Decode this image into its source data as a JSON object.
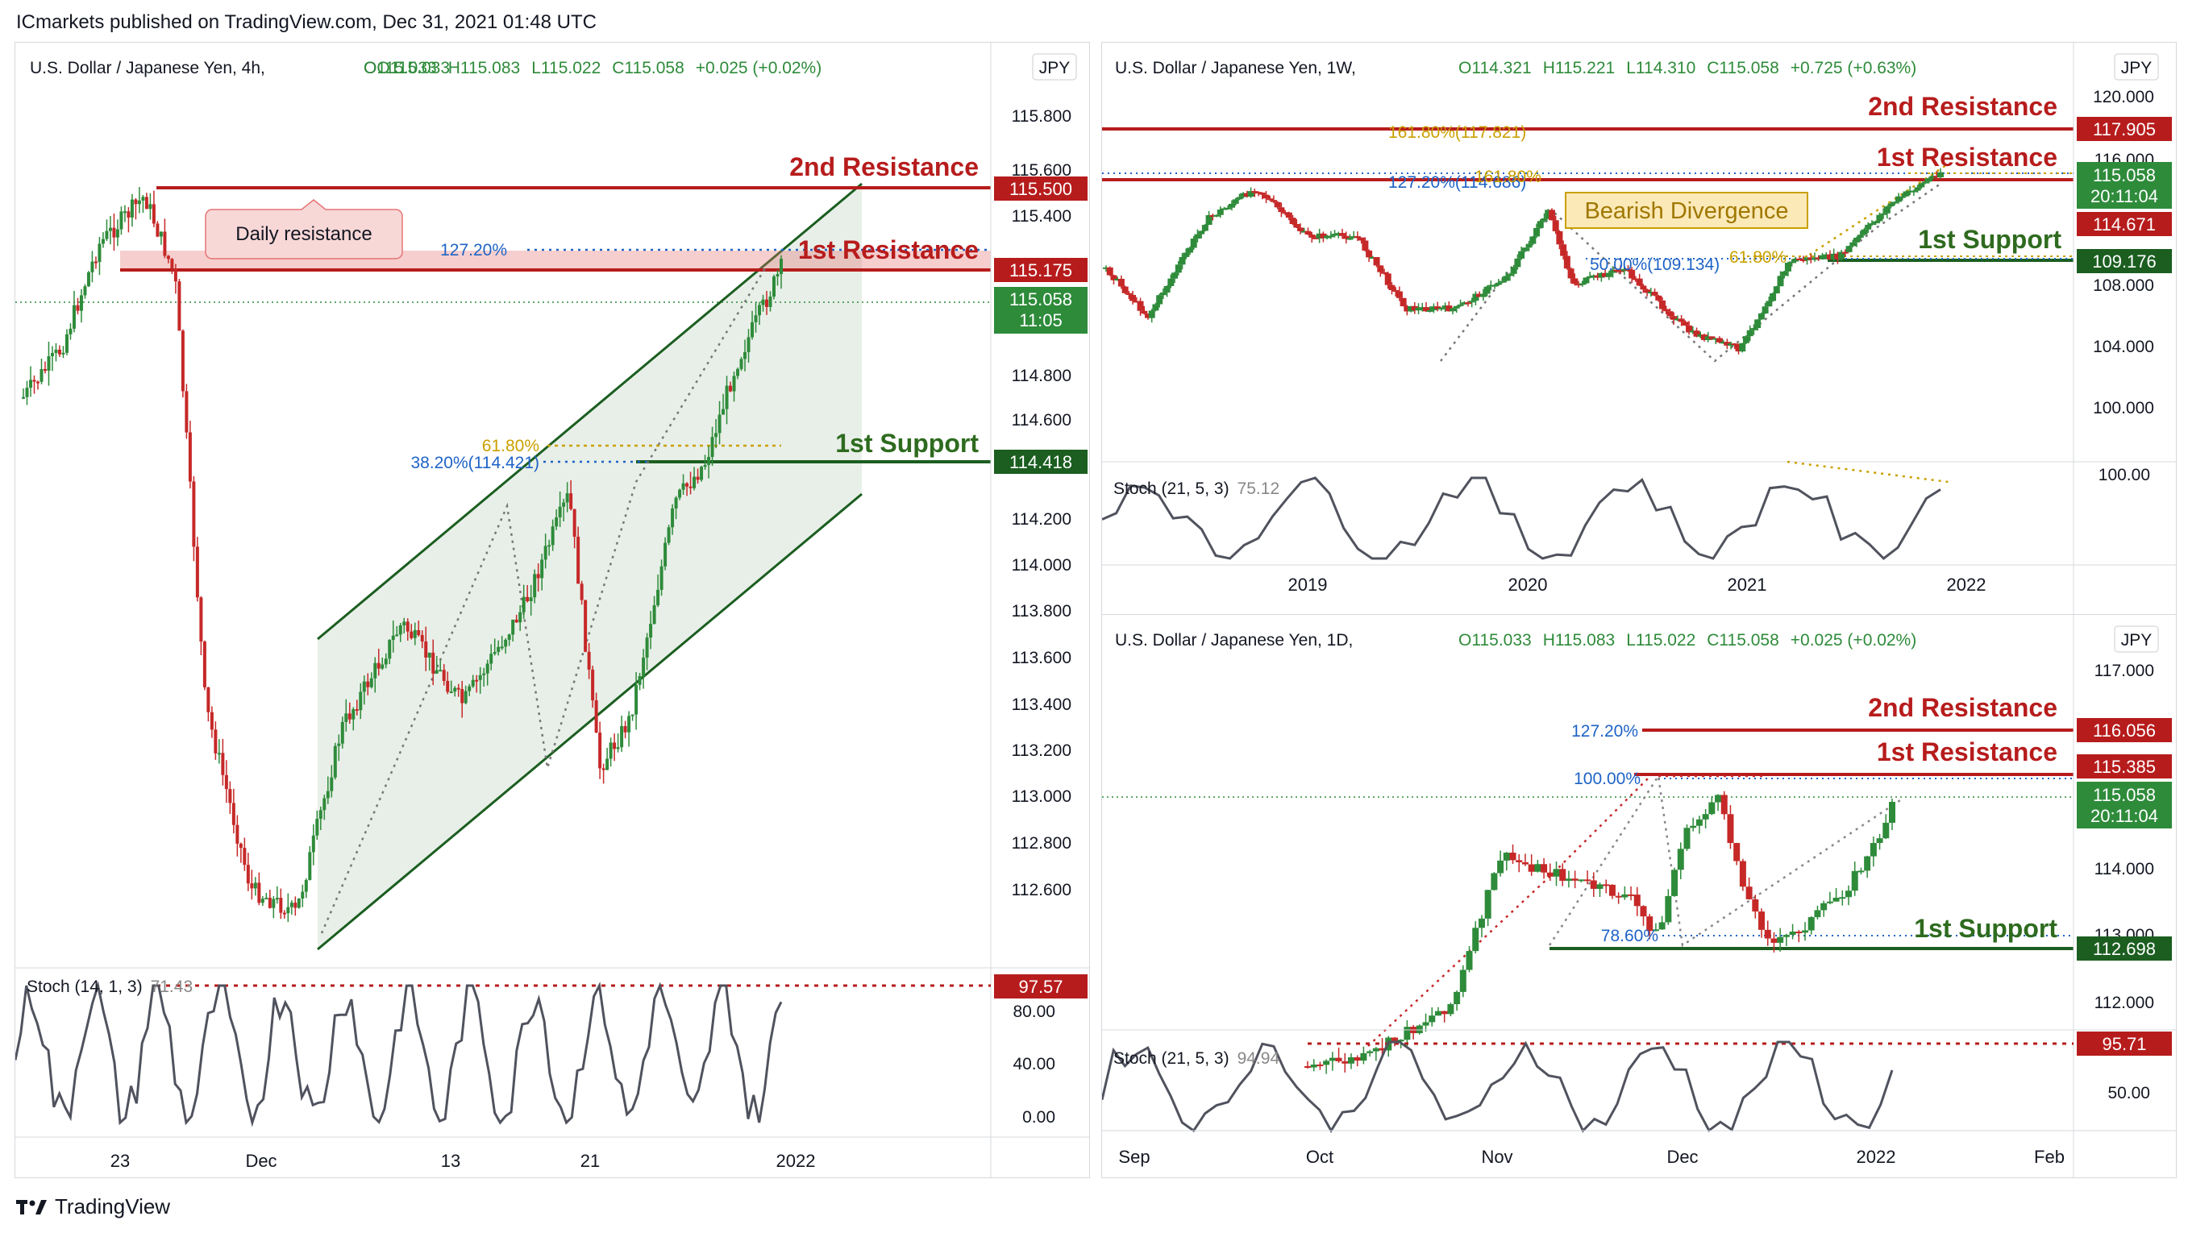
{
  "header": {
    "published": "ICmarkets published on TradingView.com, Dec 31, 2021 01:48 UTC"
  },
  "footer": {
    "brand": "TradingView"
  },
  "colors": {
    "resistance": "#b71c1c",
    "support": "#1b5e20",
    "fib_blue": "#1e63c6",
    "fib_gold": "#c9a000",
    "up": "#2e8b3a",
    "down": "#c62828",
    "stoch": "#50535e",
    "channel": "#1b5e20"
  },
  "chart_data": [
    {
      "id": "h4",
      "type": "candlestick",
      "symbol": "U.S. Dollar / Japanese Yen, 4h,",
      "ohlc": {
        "o": "O115.033",
        "h": "H115.083",
        "l": "L115.022",
        "c": "C115.058",
        "chg": "+0.025 (+0.02%)"
      },
      "currency": "JPY",
      "y_ticks": [
        "115.800",
        "115.600",
        "115.400",
        "114.800",
        "114.600",
        "114.200",
        "114.000",
        "113.800",
        "113.600",
        "113.400",
        "113.200",
        "113.000",
        "112.800",
        "112.600"
      ],
      "x_ticks": [
        "23",
        "Dec",
        "13",
        "21",
        "2022"
      ],
      "levels": [
        {
          "label": "2nd Resistance",
          "price": "115.500",
          "kind": "resistance"
        },
        {
          "label": "1st Resistance",
          "price": "115.175",
          "kind": "resistance"
        },
        {
          "label": "1st Support",
          "price": "114.418",
          "kind": "support"
        }
      ],
      "current_price": "115.058",
      "countdown": "11:05",
      "fib_labels": [
        "127.20%",
        "61.80%",
        "38.20%(114.421)"
      ],
      "annotation": "Daily resistance",
      "stoch": {
        "label": "Stoch (14, 1, 3)",
        "value": "71.43",
        "level_tag": "97.57",
        "ticks": [
          "80.00",
          "40.00",
          "0.00"
        ]
      }
    },
    {
      "id": "w1",
      "type": "candlestick",
      "symbol": "U.S. Dollar / Japanese Yen, 1W,",
      "ohlc": {
        "o": "O114.321",
        "h": "H115.221",
        "l": "L114.310",
        "c": "C115.058",
        "chg": "+0.725 (+0.63%)"
      },
      "currency": "JPY",
      "y_ticks": [
        "120.000",
        "116.000",
        "108.000",
        "104.000",
        "100.000"
      ],
      "x_ticks": [
        "2019",
        "2020",
        "2021",
        "2022"
      ],
      "levels": [
        {
          "label": "2nd Resistance",
          "price": "117.905",
          "kind": "resistance"
        },
        {
          "label": "1st Resistance",
          "price": "114.671",
          "kind": "resistance"
        },
        {
          "label": "1st Support",
          "price": "109.176",
          "kind": "support"
        }
      ],
      "current_price": "115.058",
      "countdown": "20:11:04",
      "fib_labels": [
        "161.80%(117.821)",
        "127.20%(114.686)",
        "161.80%",
        "50.00%(109.134)",
        "61.80%"
      ],
      "annotation": "Bearish Divergence",
      "stoch": {
        "label": "Stoch (21, 5, 3)",
        "value": "75.12",
        "ticks": [
          "100.00"
        ]
      }
    },
    {
      "id": "d1",
      "type": "candlestick",
      "symbol": "U.S. Dollar / Japanese Yen, 1D,",
      "ohlc": {
        "o": "O115.033",
        "h": "H115.083",
        "l": "L115.022",
        "c": "C115.058",
        "chg": "+0.025 (+0.02%)"
      },
      "currency": "JPY",
      "y_ticks": [
        "117.000",
        "114.000",
        "113.000",
        "112.000"
      ],
      "x_ticks": [
        "Sep",
        "Oct",
        "Nov",
        "Dec",
        "2022",
        "Feb"
      ],
      "levels": [
        {
          "label": "2nd Resistance",
          "price": "116.056",
          "kind": "resistance"
        },
        {
          "label": "1st Resistance",
          "price": "115.385",
          "kind": "resistance"
        },
        {
          "label": "1st Support",
          "price": "112.698",
          "kind": "support"
        }
      ],
      "current_price": "115.058",
      "countdown": "20:11:04",
      "fib_labels": [
        "127.20%",
        "100.00%",
        "78.60%"
      ],
      "stoch": {
        "label": "Stoch (21, 5, 3)",
        "value": "94.94",
        "level_tag": "95.71",
        "ticks": [
          "50.00"
        ]
      }
    }
  ]
}
